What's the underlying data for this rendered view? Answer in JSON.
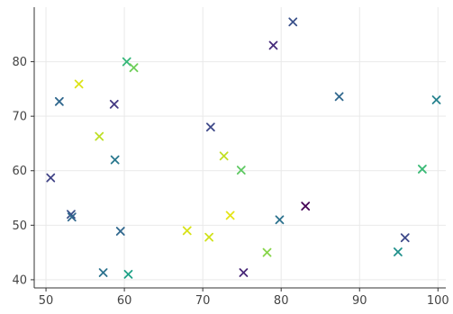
{
  "chart_data": {
    "type": "scatter",
    "title": "",
    "xlabel": "",
    "ylabel": "",
    "marker": "x",
    "colormap": "viridis",
    "grid": true,
    "xlim": [
      48.5,
      101
    ],
    "ylim": [
      38.5,
      90
    ],
    "xticks": [
      50,
      60,
      70,
      80,
      90,
      100
    ],
    "yticks": [
      40,
      50,
      60,
      70,
      80
    ],
    "points": [
      {
        "x": 81.5,
        "y": 87.3,
        "color": "#3b528b"
      },
      {
        "x": 79.0,
        "y": 83.0,
        "color": "#472d7b"
      },
      {
        "x": 60.3,
        "y": 80.0,
        "color": "#35b779"
      },
      {
        "x": 61.2,
        "y": 78.9,
        "color": "#6ece58"
      },
      {
        "x": 54.2,
        "y": 75.9,
        "color": "#dde318"
      },
      {
        "x": 51.7,
        "y": 72.7,
        "color": "#31688e"
      },
      {
        "x": 58.7,
        "y": 72.2,
        "color": "#443983"
      },
      {
        "x": 87.4,
        "y": 73.6,
        "color": "#31688e"
      },
      {
        "x": 99.8,
        "y": 73.0,
        "color": "#26828e"
      },
      {
        "x": 71.0,
        "y": 68.0,
        "color": "#3e4989"
      },
      {
        "x": 56.8,
        "y": 66.3,
        "color": "#bddf26"
      },
      {
        "x": 72.7,
        "y": 62.7,
        "color": "#c2df23"
      },
      {
        "x": 58.8,
        "y": 62.0,
        "color": "#2a788e"
      },
      {
        "x": 74.9,
        "y": 60.1,
        "color": "#5ec962"
      },
      {
        "x": 98.0,
        "y": 60.3,
        "color": "#3aba76"
      },
      {
        "x": 50.6,
        "y": 58.7,
        "color": "#414487"
      },
      {
        "x": 53.2,
        "y": 52.0,
        "color": "#3b528b"
      },
      {
        "x": 53.3,
        "y": 51.5,
        "color": "#31688e"
      },
      {
        "x": 73.5,
        "y": 51.8,
        "color": "#e5e419"
      },
      {
        "x": 83.1,
        "y": 53.5,
        "color": "#440154"
      },
      {
        "x": 79.8,
        "y": 51.0,
        "color": "#2c728e"
      },
      {
        "x": 59.5,
        "y": 48.9,
        "color": "#31688e"
      },
      {
        "x": 68.0,
        "y": 49.0,
        "color": "#d8e219"
      },
      {
        "x": 70.8,
        "y": 47.8,
        "color": "#d0e11c"
      },
      {
        "x": 95.8,
        "y": 47.7,
        "color": "#3e4989"
      },
      {
        "x": 78.2,
        "y": 45.0,
        "color": "#86d549"
      },
      {
        "x": 94.9,
        "y": 45.1,
        "color": "#21918c"
      },
      {
        "x": 57.3,
        "y": 41.3,
        "color": "#2c728e"
      },
      {
        "x": 60.5,
        "y": 41.0,
        "color": "#1fa187"
      },
      {
        "x": 75.2,
        "y": 41.3,
        "color": "#482878"
      }
    ]
  }
}
